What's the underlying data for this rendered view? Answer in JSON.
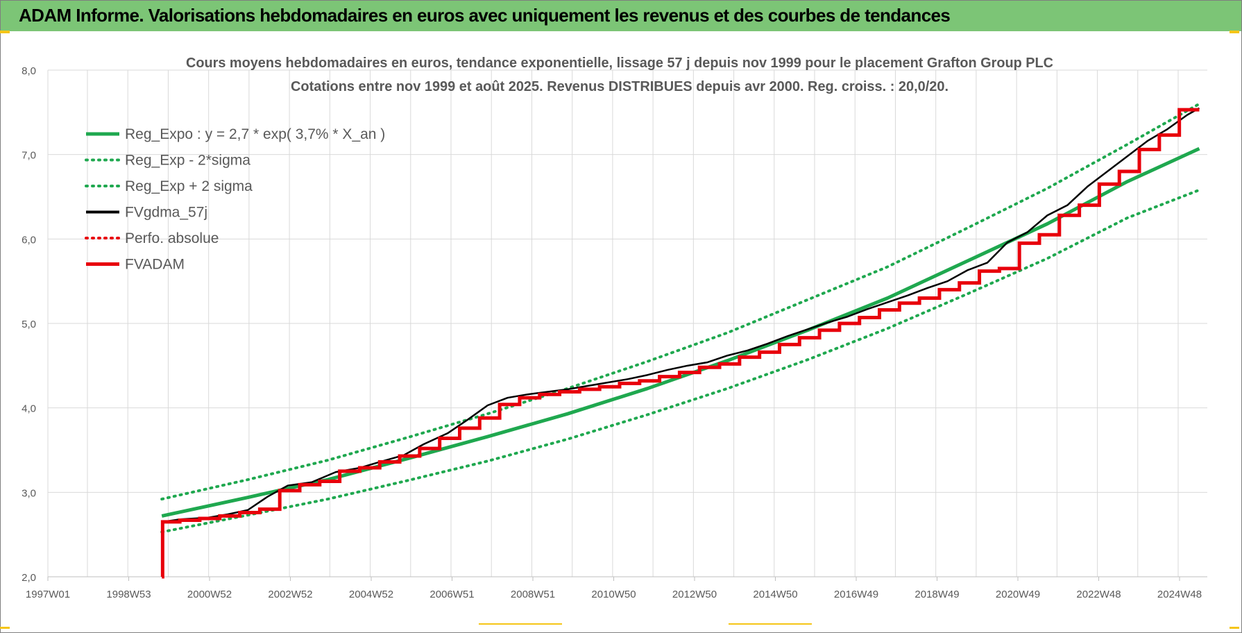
{
  "banner": {
    "title": "ADAM Informe. Valorisations hebdomadaires en euros avec uniquement les revenus et des courbes de tendances"
  },
  "chart_data": {
    "type": "line",
    "title": "Cours moyens hebdomadaires en euros, tendance exponentielle, lissage 57 j depuis nov 1999 pour le placement Grafton Group PLC",
    "subtitle": "Cotations entre nov 1999 et août 2025. Revenus DISTRIBUES depuis avr 2000. Reg. croiss. : 20,0/20.",
    "xlabel": "",
    "ylabel": "",
    "ylim": [
      2.0,
      8.0
    ],
    "xlim": [
      1997.0,
      2026.0
    ],
    "y_ticks": [
      "2,0",
      "3,0",
      "4,0",
      "5,0",
      "6,0",
      "7,0",
      "8,0"
    ],
    "x_tick_labels": [
      "1997W01",
      "1998W53",
      "2000W52",
      "2002W52",
      "2004W52",
      "2006W51",
      "2008W51",
      "2010W50",
      "2012W50",
      "2014W50",
      "2016W49",
      "2018W49",
      "2020W49",
      "2022W48",
      "2024W48"
    ],
    "grid": true,
    "legend_position": "top-left",
    "colors": {
      "reg_expo": "#1fa84f",
      "sigma_bands": "#1fa84f",
      "fvgdma": "#000000",
      "perfo": "#e8000b",
      "fvadam": "#e8000b",
      "grid": "#d9d9d9"
    },
    "series": [
      {
        "name": "Reg_Expo : y = 2,7 * exp( 3,7% *  X_an )",
        "style": "solid-thick",
        "x": [
          1999.85,
          2002.0,
          2004.0,
          2006.0,
          2008.0,
          2010.0,
          2012.0,
          2014.0,
          2016.0,
          2018.0,
          2020.0,
          2022.0,
          2024.0,
          2025.8
        ],
        "y": [
          2.72,
          2.94,
          3.15,
          3.4,
          3.66,
          3.93,
          4.23,
          4.56,
          4.92,
          5.3,
          5.74,
          6.18,
          6.68,
          7.07
        ]
      },
      {
        "name": "Reg_Exp - 2*sigma",
        "style": "dotted",
        "x": [
          1999.85,
          2002.0,
          2004.0,
          2006.0,
          2008.0,
          2010.0,
          2012.0,
          2014.0,
          2016.0,
          2018.0,
          2020.0,
          2022.0,
          2024.0,
          2025.8
        ],
        "y": [
          2.53,
          2.73,
          2.92,
          3.14,
          3.37,
          3.63,
          3.92,
          4.23,
          4.57,
          4.94,
          5.35,
          5.77,
          6.25,
          6.58
        ]
      },
      {
        "name": "Reg_Exp + 2 sigma",
        "style": "dotted",
        "x": [
          1999.85,
          2002.0,
          2004.0,
          2006.0,
          2008.0,
          2010.0,
          2012.0,
          2014.0,
          2016.0,
          2018.0,
          2020.0,
          2022.0,
          2024.0,
          2025.8
        ],
        "y": [
          2.92,
          3.15,
          3.38,
          3.65,
          3.93,
          4.23,
          4.55,
          4.89,
          5.28,
          5.67,
          6.13,
          6.6,
          7.12,
          7.6
        ]
      },
      {
        "name": "FVgdma_57j",
        "style": "solid-thin",
        "x": [
          1999.85,
          1999.87,
          2000.3,
          2001.0,
          2001.5,
          2002.0,
          2002.5,
          2003.0,
          2003.6,
          2004.2,
          2004.8,
          2005.3,
          2005.9,
          2006.4,
          2007.0,
          2007.5,
          2008.0,
          2008.5,
          2009.0,
          2009.5,
          2010.0,
          2010.5,
          2011.0,
          2011.5,
          2012.0,
          2012.5,
          2013.0,
          2013.5,
          2014.0,
          2014.5,
          2015.0,
          2015.5,
          2016.0,
          2016.5,
          2017.0,
          2017.5,
          2018.0,
          2018.5,
          2019.0,
          2019.5,
          2020.0,
          2020.5,
          2021.0,
          2021.5,
          2022.0,
          2022.5,
          2023.0,
          2023.5,
          2024.0,
          2024.5,
          2025.0,
          2025.5,
          2025.8
        ],
        "y": [
          2.0,
          2.65,
          2.68,
          2.7,
          2.74,
          2.79,
          2.95,
          3.08,
          3.12,
          3.24,
          3.29,
          3.36,
          3.44,
          3.57,
          3.7,
          3.86,
          4.03,
          4.12,
          4.16,
          4.19,
          4.22,
          4.26,
          4.3,
          4.34,
          4.39,
          4.45,
          4.5,
          4.54,
          4.62,
          4.68,
          4.76,
          4.85,
          4.93,
          5.01,
          5.08,
          5.17,
          5.25,
          5.33,
          5.42,
          5.5,
          5.63,
          5.72,
          5.96,
          6.08,
          6.28,
          6.4,
          6.62,
          6.8,
          6.98,
          7.16,
          7.3,
          7.47,
          7.55
        ]
      },
      {
        "name": "Perfo. absolue",
        "style": "dotted",
        "x": [],
        "y": []
      },
      {
        "name": "FVADAM",
        "style": "step-thick",
        "x": [
          1999.85,
          1999.87,
          2000.3,
          2000.8,
          2001.3,
          2001.8,
          2002.3,
          2002.8,
          2003.3,
          2003.8,
          2004.3,
          2004.8,
          2005.3,
          2005.8,
          2006.3,
          2006.8,
          2007.3,
          2007.8,
          2008.3,
          2008.8,
          2009.3,
          2009.8,
          2010.3,
          2010.8,
          2011.3,
          2011.8,
          2012.3,
          2012.8,
          2013.3,
          2013.8,
          2014.3,
          2014.8,
          2015.3,
          2015.8,
          2016.3,
          2016.8,
          2017.3,
          2017.8,
          2018.3,
          2018.8,
          2019.3,
          2019.8,
          2020.3,
          2020.8,
          2021.3,
          2021.8,
          2022.3,
          2022.8,
          2023.3,
          2023.8,
          2024.3,
          2024.8,
          2025.3
        ],
        "y": [
          2.0,
          2.65,
          2.67,
          2.69,
          2.72,
          2.76,
          2.8,
          3.02,
          3.09,
          3.13,
          3.25,
          3.29,
          3.36,
          3.43,
          3.52,
          3.64,
          3.76,
          3.88,
          4.04,
          4.12,
          4.16,
          4.19,
          4.22,
          4.25,
          4.29,
          4.32,
          4.37,
          4.42,
          4.48,
          4.52,
          4.6,
          4.66,
          4.75,
          4.83,
          4.92,
          5.0,
          5.07,
          5.16,
          5.24,
          5.3,
          5.4,
          5.48,
          5.62,
          5.65,
          5.95,
          6.05,
          6.28,
          6.4,
          6.65,
          6.8,
          7.06,
          7.23,
          7.53
        ]
      }
    ]
  }
}
